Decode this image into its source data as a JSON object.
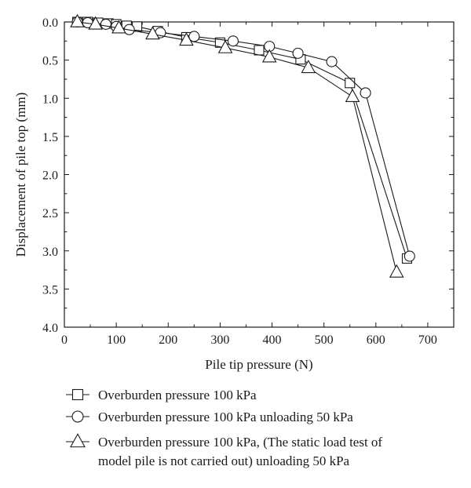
{
  "chart_data": {
    "type": "line",
    "title": "",
    "xlabel": "Pile tip pressure (N)",
    "ylabel": "Displacement of pile top (mm)",
    "xlim": [
      0,
      750
    ],
    "ylim": [
      0,
      4.0
    ],
    "y_inverted": true,
    "x_ticks": [
      0,
      100,
      200,
      300,
      400,
      500,
      600,
      700
    ],
    "y_ticks": [
      0.0,
      0.5,
      1.0,
      1.5,
      2.0,
      2.5,
      3.0,
      3.5,
      4.0
    ],
    "x_tick_labels": [
      "0",
      "100",
      "200",
      "300",
      "400",
      "500",
      "600",
      "700"
    ],
    "y_tick_labels": [
      "0.0",
      "0.5",
      "1.0",
      "1.5",
      "2.0",
      "2.5",
      "3.0",
      "3.5",
      "4.0"
    ],
    "grid": false,
    "legend_position": "bottom",
    "series": [
      {
        "name": "Overburden pressure 100 kPa",
        "name_lines": [
          "Overburden pressure 100 kPa"
        ],
        "marker": "square",
        "x": [
          25,
          45,
          65,
          85,
          100,
          120,
          140,
          180,
          235,
          300,
          375,
          455,
          550,
          660
        ],
        "y": [
          0.0,
          0.0,
          0.01,
          0.02,
          0.03,
          0.05,
          0.06,
          0.12,
          0.2,
          0.27,
          0.37,
          0.49,
          0.8,
          3.1
        ]
      },
      {
        "name": "Overburden pressure 100 kPa unloading 50 kPa",
        "name_lines": [
          "Overburden pressure 100 kPa unloading 50 kPa"
        ],
        "marker": "circle",
        "x": [
          25,
          45,
          80,
          100,
          125,
          185,
          250,
          325,
          395,
          450,
          515,
          580,
          665
        ],
        "y": [
          0.0,
          0.01,
          0.03,
          0.06,
          0.1,
          0.14,
          0.19,
          0.25,
          0.32,
          0.41,
          0.52,
          0.93,
          3.07
        ]
      },
      {
        "name": "Overburden pressure 100 kPa, (The static load test of model pile is not carried out) unloading 50 kPa",
        "name_lines": [
          "Overburden pressure 100 kPa, (The static load test of",
          "model pile is not carried out) unloading 50 kPa"
        ],
        "marker": "triangle",
        "x": [
          25,
          60,
          105,
          170,
          235,
          310,
          395,
          470,
          555,
          640
        ],
        "y": [
          0.0,
          0.03,
          0.08,
          0.16,
          0.24,
          0.34,
          0.46,
          0.6,
          0.98,
          3.28
        ]
      }
    ]
  }
}
